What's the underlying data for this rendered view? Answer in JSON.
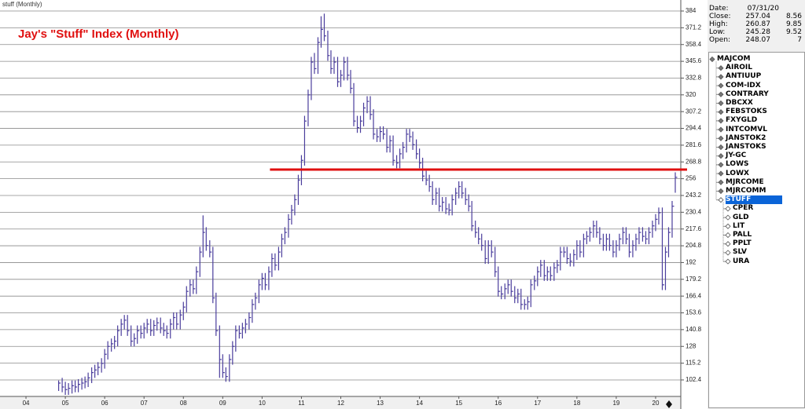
{
  "chart_data": {
    "type": "ohlc",
    "header": "stuff (Monthly)",
    "title": "Jay's \"Stuff\" Index (Monthly)",
    "color": "#4a3d9c",
    "ylim": [
      89.8,
      392.4
    ],
    "yticks": [
      384,
      371.2,
      358.4,
      345.6,
      332.8,
      320,
      307.2,
      294.4,
      281.6,
      268.8,
      256,
      243.2,
      230.4,
      217.6,
      204.8,
      192,
      179.2,
      166.4,
      153.6,
      140.8,
      128,
      115.2,
      102.4
    ],
    "xlim": [
      2003.34,
      2020.64
    ],
    "xticks": [
      {
        "value": 2004,
        "label": "04"
      },
      {
        "value": 2005,
        "label": "05"
      },
      {
        "value": 2006,
        "label": "06"
      },
      {
        "value": 2007,
        "label": "07"
      },
      {
        "value": 2008,
        "label": "08"
      },
      {
        "value": 2009,
        "label": "09"
      },
      {
        "value": 2010,
        "label": "10"
      },
      {
        "value": 2011,
        "label": "11"
      },
      {
        "value": 2012,
        "label": "12"
      },
      {
        "value": 2013,
        "label": "13"
      },
      {
        "value": 2014,
        "label": "14"
      },
      {
        "value": 2015,
        "label": "15"
      },
      {
        "value": 2016,
        "label": "16"
      },
      {
        "value": 2017,
        "label": "17"
      },
      {
        "value": 2018,
        "label": "18"
      },
      {
        "value": 2019,
        "label": "19"
      },
      {
        "value": 2020,
        "label": "20"
      }
    ],
    "grid": true,
    "reference_line": {
      "value": 263,
      "color": "#e01010",
      "x_start": 2010.2
    },
    "x": [
      2004.83,
      2004.92,
      2005,
      2005.08,
      2005.17,
      2005.25,
      2005.33,
      2005.42,
      2005.5,
      2005.58,
      2005.67,
      2005.75,
      2005.83,
      2005.92,
      2006,
      2006.08,
      2006.17,
      2006.25,
      2006.33,
      2006.42,
      2006.5,
      2006.58,
      2006.67,
      2006.75,
      2006.83,
      2006.92,
      2007,
      2007.08,
      2007.17,
      2007.25,
      2007.33,
      2007.42,
      2007.5,
      2007.58,
      2007.67,
      2007.75,
      2007.83,
      2007.92,
      2008,
      2008.08,
      2008.17,
      2008.25,
      2008.33,
      2008.42,
      2008.5,
      2008.58,
      2008.67,
      2008.75,
      2008.83,
      2008.92,
      2009,
      2009.08,
      2009.17,
      2009.25,
      2009.33,
      2009.42,
      2009.5,
      2009.58,
      2009.67,
      2009.75,
      2009.83,
      2009.92,
      2010,
      2010.08,
      2010.17,
      2010.25,
      2010.33,
      2010.42,
      2010.5,
      2010.58,
      2010.67,
      2010.75,
      2010.83,
      2010.92,
      2011,
      2011.08,
      2011.17,
      2011.25,
      2011.33,
      2011.42,
      2011.5,
      2011.58,
      2011.67,
      2011.75,
      2011.83,
      2011.92,
      2012,
      2012.08,
      2012.17,
      2012.25,
      2012.33,
      2012.42,
      2012.5,
      2012.58,
      2012.67,
      2012.75,
      2012.83,
      2012.92,
      2013,
      2013.08,
      2013.17,
      2013.25,
      2013.33,
      2013.42,
      2013.5,
      2013.58,
      2013.67,
      2013.75,
      2013.83,
      2013.92,
      2014,
      2014.08,
      2014.17,
      2014.25,
      2014.33,
      2014.42,
      2014.5,
      2014.58,
      2014.67,
      2014.75,
      2014.83,
      2014.92,
      2015,
      2015.08,
      2015.17,
      2015.25,
      2015.33,
      2015.42,
      2015.5,
      2015.58,
      2015.67,
      2015.75,
      2015.83,
      2015.92,
      2016,
      2016.08,
      2016.17,
      2016.25,
      2016.33,
      2016.42,
      2016.5,
      2016.58,
      2016.67,
      2016.75,
      2016.83,
      2016.92,
      2017,
      2017.08,
      2017.17,
      2017.25,
      2017.33,
      2017.42,
      2017.5,
      2017.58,
      2017.67,
      2017.75,
      2017.83,
      2017.92,
      2018,
      2018.08,
      2018.17,
      2018.25,
      2018.33,
      2018.42,
      2018.5,
      2018.58,
      2018.67,
      2018.75,
      2018.83,
      2018.92,
      2019,
      2019.08,
      2019.17,
      2019.25,
      2019.33,
      2019.42,
      2019.5,
      2019.58,
      2019.67,
      2019.75,
      2019.83,
      2019.92,
      2020,
      2020.08,
      2020.17,
      2020.25,
      2020.33,
      2020.42,
      2020.5
    ],
    "high": [
      102,
      104,
      101,
      100,
      102,
      102,
      103,
      104,
      105,
      108,
      112,
      114,
      116,
      119,
      126,
      132,
      134,
      136,
      144,
      149,
      152,
      152,
      144,
      138,
      144,
      144,
      146,
      149,
      149,
      148,
      150,
      150,
      146,
      144,
      149,
      154,
      154,
      156,
      162,
      174,
      179,
      179,
      189,
      204,
      228,
      219,
      209,
      204,
      169,
      144,
      122,
      112,
      122,
      132,
      144,
      144,
      146,
      149,
      154,
      164,
      169,
      179,
      184,
      184,
      189,
      199,
      199,
      204,
      214,
      219,
      229,
      236,
      244,
      259,
      274,
      304,
      324,
      349,
      352,
      364,
      380,
      382,
      369,
      354,
      349,
      349,
      339,
      349,
      349,
      339,
      329,
      304,
      304,
      314,
      319,
      319,
      309,
      294,
      296,
      296,
      294,
      289,
      289,
      274,
      279,
      284,
      294,
      294,
      292,
      286,
      279,
      272,
      262,
      259,
      254,
      249,
      249,
      242,
      242,
      237,
      244,
      249,
      254,
      254,
      249,
      244,
      239,
      224,
      219,
      214,
      209,
      209,
      209,
      204,
      189,
      174,
      176,
      179,
      179,
      174,
      172,
      172,
      164,
      166,
      179,
      182,
      189,
      194,
      194,
      189,
      189,
      192,
      194,
      204,
      204,
      204,
      199,
      202,
      209,
      209,
      214,
      216,
      219,
      224,
      224,
      219,
      214,
      214,
      214,
      209,
      209,
      214,
      219,
      219,
      214,
      209,
      214,
      219,
      219,
      216,
      219,
      224,
      229,
      234,
      234,
      204,
      219,
      239,
      260.87
    ],
    "low": [
      94,
      93,
      91,
      91,
      92,
      93,
      93,
      95,
      96,
      97,
      100,
      104,
      106,
      108,
      111,
      118,
      124,
      126,
      128,
      136,
      141,
      136,
      128,
      128,
      130,
      134,
      134,
      138,
      136,
      136,
      140,
      138,
      136,
      134,
      134,
      141,
      141,
      141,
      148,
      154,
      166,
      168,
      168,
      181,
      196,
      201,
      196,
      161,
      136,
      104,
      104,
      101,
      101,
      114,
      124,
      134,
      134,
      138,
      141,
      146,
      156,
      161,
      171,
      171,
      171,
      181,
      186,
      186,
      196,
      206,
      211,
      221,
      228,
      236,
      251,
      266,
      296,
      316,
      336,
      336,
      356,
      361,
      346,
      336,
      336,
      326,
      326,
      331,
      331,
      321,
      296,
      291,
      291,
      296,
      306,
      301,
      286,
      284,
      284,
      286,
      276,
      276,
      266,
      264,
      264,
      271,
      276,
      284,
      278,
      271,
      264,
      254,
      251,
      246,
      236,
      236,
      231,
      231,
      229,
      228,
      228,
      236,
      241,
      241,
      236,
      231,
      216,
      211,
      206,
      201,
      191,
      191,
      196,
      181,
      166,
      164,
      164,
      168,
      166,
      161,
      161,
      156,
      156,
      156,
      158,
      171,
      174,
      181,
      178,
      178,
      178,
      178,
      184,
      186,
      196,
      191,
      189,
      189,
      194,
      196,
      196,
      206,
      208,
      211,
      211,
      206,
      201,
      201,
      201,
      196,
      196,
      201,
      206,
      206,
      196,
      196,
      201,
      206,
      208,
      206,
      206,
      211,
      216,
      221,
      171,
      171,
      196,
      211,
      245.28
    ],
    "close": [
      100,
      97,
      95,
      96,
      98,
      97,
      99,
      100,
      101,
      104,
      108,
      110,
      112,
      115,
      122,
      128,
      130,
      132,
      140,
      145,
      148,
      140,
      132,
      134,
      140,
      138,
      142,
      145,
      140,
      144,
      146,
      142,
      140,
      138,
      145,
      150,
      145,
      152,
      158,
      170,
      175,
      172,
      185,
      200,
      215,
      205,
      200,
      165,
      140,
      118,
      108,
      105,
      118,
      128,
      140,
      138,
      142,
      145,
      150,
      160,
      165,
      175,
      180,
      175,
      185,
      195,
      190,
      200,
      210,
      215,
      225,
      232,
      240,
      255,
      270,
      300,
      320,
      345,
      340,
      360,
      370,
      365,
      350,
      340,
      345,
      330,
      335,
      345,
      335,
      325,
      300,
      295,
      300,
      310,
      315,
      305,
      290,
      288,
      292,
      290,
      280,
      285,
      270,
      268,
      275,
      280,
      290,
      288,
      282,
      275,
      268,
      258,
      255,
      250,
      240,
      245,
      235,
      238,
      233,
      232,
      240,
      245,
      250,
      245,
      240,
      235,
      220,
      215,
      210,
      205,
      195,
      205,
      200,
      185,
      170,
      168,
      172,
      175,
      170,
      165,
      168,
      160,
      160,
      162,
      175,
      178,
      185,
      190,
      182,
      185,
      182,
      188,
      190,
      200,
      200,
      195,
      193,
      198,
      205,
      200,
      210,
      212,
      215,
      220,
      215,
      210,
      205,
      210,
      205,
      200,
      205,
      210,
      215,
      210,
      200,
      205,
      210,
      215,
      212,
      210,
      215,
      220,
      225,
      230,
      175,
      200,
      215,
      235,
      257.04
    ]
  },
  "info": {
    "date_label": "Date:",
    "date": "07/31/20",
    "rows": [
      [
        "Close:",
        "257.04",
        "8.56"
      ],
      [
        "High:",
        "260.87",
        "9.85"
      ],
      [
        "Low:",
        "245.28",
        "9.52"
      ],
      [
        "Open:",
        "248.07",
        "7"
      ]
    ]
  },
  "tree": {
    "root": "MAJCOM",
    "items": [
      "AIROIL",
      "ANTIUUP",
      "COM-IDX",
      "CONTRARY",
      "DBCXX",
      "FEBSTOKS",
      "FXYGLD",
      "INTCOMVL",
      "JANSTOK2",
      "JANSTOKS",
      "JY-GC",
      "LOWS",
      "LOWX",
      "MJRCOME",
      "MJRCOMM",
      "STUFF"
    ],
    "children": [
      "CPER",
      "GLD",
      "LIT",
      "PALL",
      "PPLT",
      "SLV",
      "URA"
    ]
  }
}
